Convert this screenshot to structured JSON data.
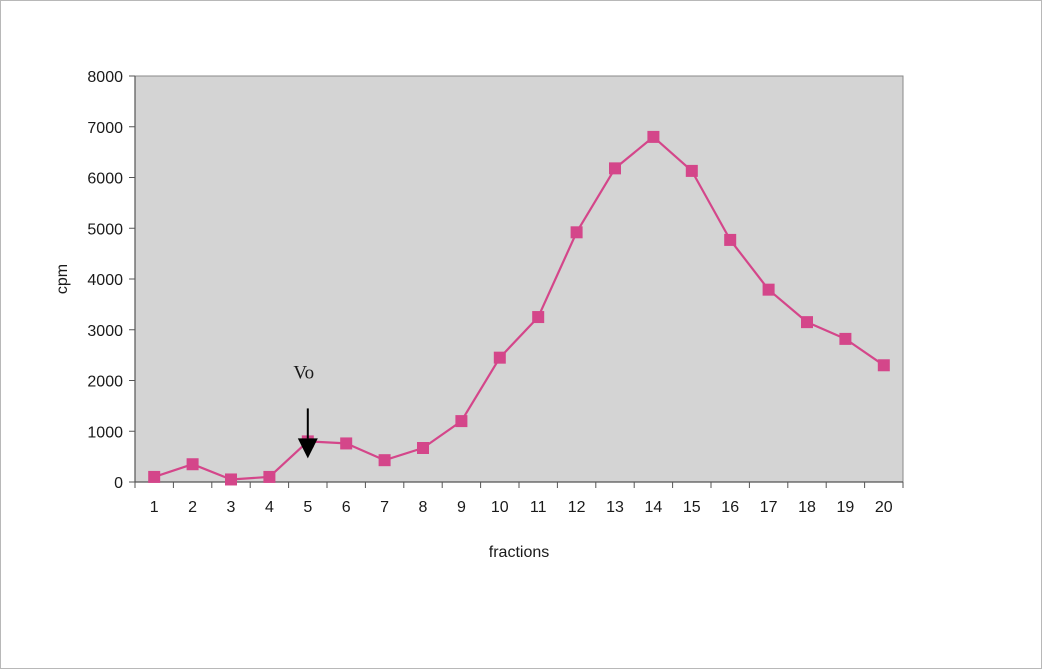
{
  "chart_data": {
    "type": "line",
    "title": "",
    "xlabel": "fractions",
    "ylabel": "cpm",
    "x": [
      1,
      2,
      3,
      4,
      5,
      6,
      7,
      8,
      9,
      10,
      11,
      12,
      13,
      14,
      15,
      16,
      17,
      18,
      19,
      20
    ],
    "series": [
      {
        "values": [
          100,
          350,
          50,
          100,
          800,
          760,
          430,
          670,
          1200,
          2450,
          3250,
          4920,
          6180,
          6800,
          6130,
          4770,
          3790,
          3150,
          2820,
          2300
        ]
      }
    ],
    "ylim": [
      0,
      8000
    ],
    "yticks": [
      0,
      1000,
      2000,
      3000,
      4000,
      5000,
      6000,
      7000,
      8000
    ],
    "grid": false,
    "legend": "none",
    "annotations": [
      {
        "text": "Vo",
        "x": 5,
        "y": 1450,
        "marker": "down-arrow"
      }
    ],
    "colors": {
      "series": "#d4468a",
      "plot_background": "#d4d4d4",
      "axis": "#555555"
    }
  }
}
